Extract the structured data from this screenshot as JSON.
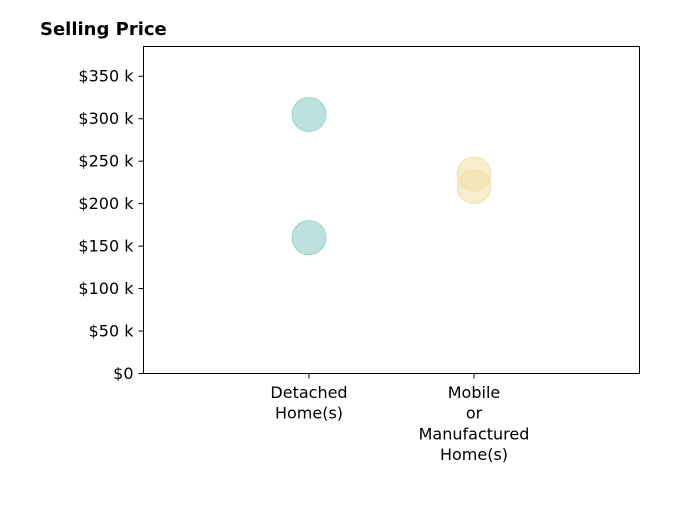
{
  "chart_data": {
    "type": "scatter",
    "title": "Selling Price",
    "xlabel": "",
    "ylabel": "",
    "categories": [
      "Detached Home(s)",
      "Mobile or Manufactured Home(s)"
    ],
    "category_label_lines": [
      [
        "Detached",
        "Home(s)"
      ],
      [
        "Mobile",
        "or",
        "Manufactured",
        "Home(s)"
      ]
    ],
    "ylim": [
      0,
      385000
    ],
    "yticks": [
      0,
      50000,
      100000,
      150000,
      200000,
      250000,
      300000,
      350000
    ],
    "ytick_labels": [
      "$0",
      "$50 k",
      "$100 k",
      "$150 k",
      "$200 k",
      "$250 k",
      "$300 k",
      "$350 k"
    ],
    "series": [
      {
        "category": "Detached Home(s)",
        "color": "#8ecfc6",
        "values": [
          305000,
          160000
        ]
      },
      {
        "category": "Mobile or Manufactured Home(s)",
        "color": "#f2dfac",
        "values": [
          235000,
          220000
        ]
      }
    ],
    "grid": false,
    "legend": "none"
  }
}
